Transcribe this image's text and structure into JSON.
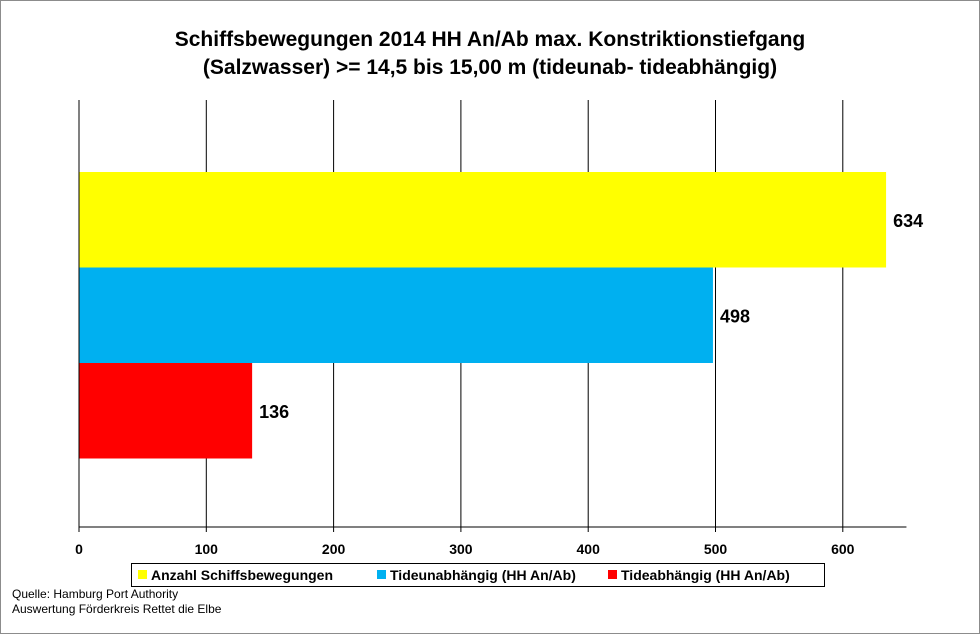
{
  "chart_data": {
    "type": "bar",
    "orientation": "horizontal",
    "title": "Schiffsbewegungen 2014 HH An/Ab max. Konstriktionstiefgang",
    "subtitle": "(Salzwasser) >= 14,5 bis 15,00 m (tideunab- tideabhängig)",
    "xlim": [
      0,
      650
    ],
    "xticks": [
      "0",
      "100",
      "200",
      "300",
      "400",
      "500",
      "600"
    ],
    "grid": "vertical",
    "legend_position": "bottom",
    "series": [
      {
        "name": "Anzahl Schiffsbewegungen",
        "value": 634,
        "label": "634",
        "color": "#FFFF00"
      },
      {
        "name": "Tideunabhängig (HH An/Ab)",
        "value": 498,
        "label": "498",
        "color": "#00B0F0"
      },
      {
        "name": "Tideabhängig (HH An/Ab)",
        "value": 136,
        "label": "136",
        "color": "#FF0000"
      }
    ]
  },
  "source": {
    "line1": "Quelle: Hamburg Port Authority",
    "line2": "Auswertung Förderkreis Rettet  die Elbe"
  }
}
